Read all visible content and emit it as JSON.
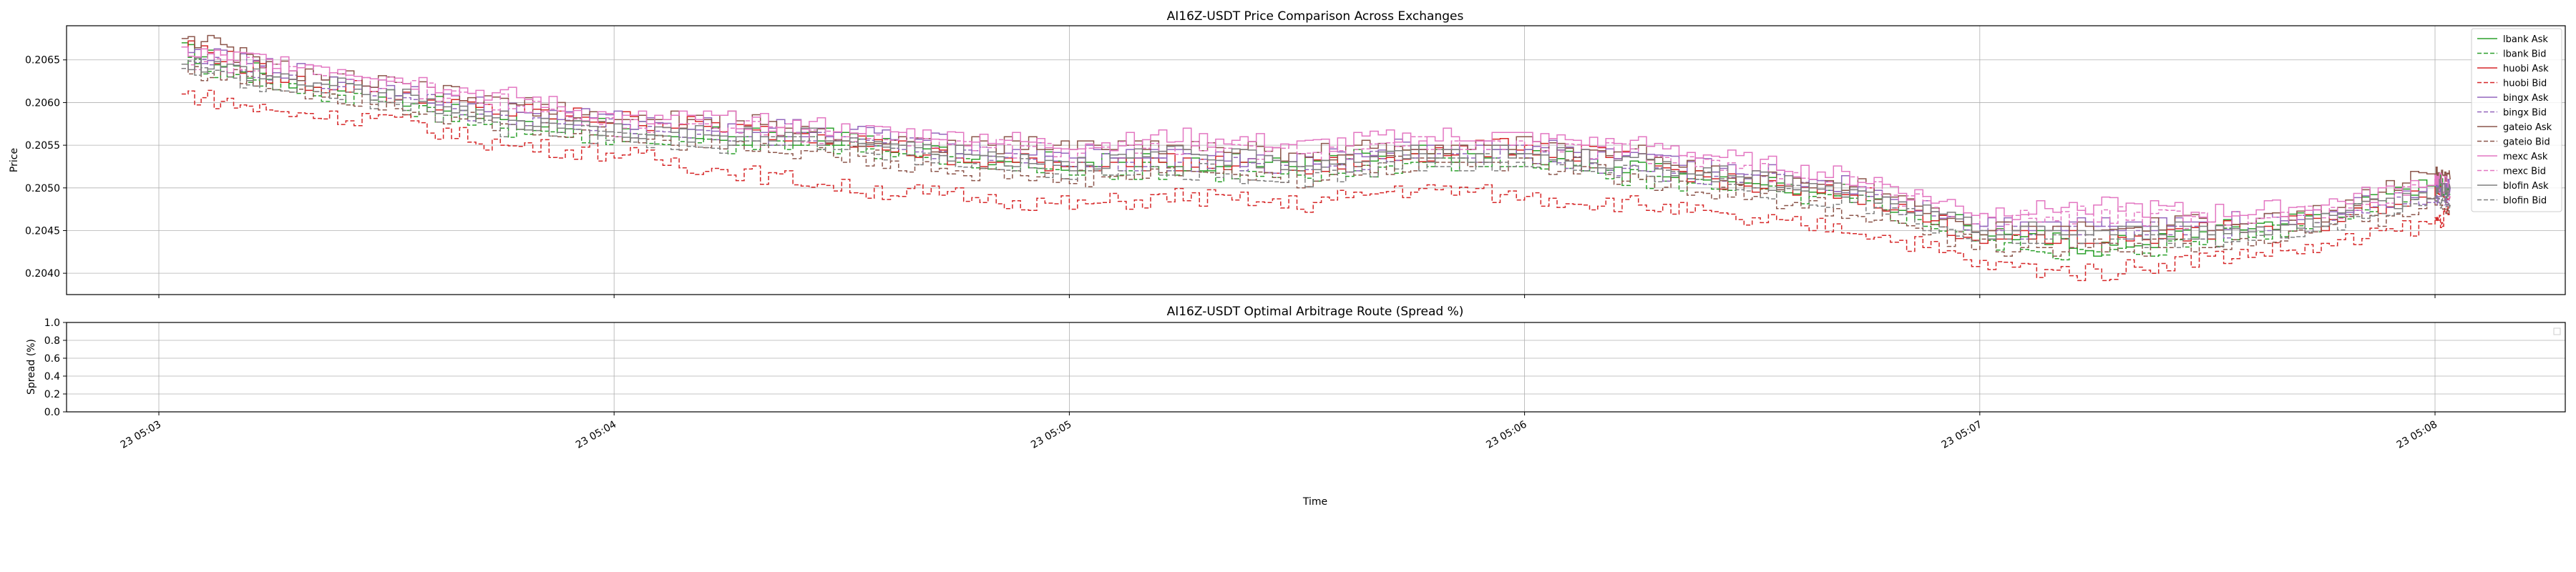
{
  "chart_data": [
    {
      "type": "line",
      "title": "AI16Z-USDT Price Comparison Across Exchanges",
      "xlabel": "",
      "ylabel": "Price",
      "xlim": [
        "2025-01-23 05:03:00",
        "2025-01-23 05:08:00"
      ],
      "x_ticks": [
        "2025-01-23 05:03:00",
        "2025-01-23 05:04:00",
        "2025-01-23 05:05:00",
        "2025-01-23 05:06:00",
        "2025-01-23 05:07:00",
        "2025-01-23 05:08:00"
      ],
      "x_tick_labels": [
        "23 05:03",
        "23 05:04",
        "23 05:05",
        "23 05:06",
        "23 05:07",
        "23 05:08"
      ],
      "ylim": [
        0.20375,
        0.2069
      ],
      "y_ticks": [
        0.204,
        0.2045,
        0.205,
        0.2055,
        0.206,
        0.2065
      ],
      "y_tick_labels": [
        "0.2040",
        "0.2045",
        "0.2050",
        "0.2055",
        "0.2060",
        "0.2065"
      ],
      "grid": true,
      "legend_position": "upper right",
      "x": [
        "05:03:03",
        "05:03:15",
        "05:03:30",
        "05:03:45",
        "05:04:00",
        "05:04:15",
        "05:04:30",
        "05:04:45",
        "05:05:00",
        "05:05:15",
        "05:05:30",
        "05:05:45",
        "05:06:00",
        "05:06:15",
        "05:06:30",
        "05:06:45",
        "05:07:00",
        "05:07:15",
        "05:07:30",
        "05:07:45",
        "05:08:00",
        "05:08:02"
      ],
      "series": [
        {
          "name": "lbank Ask",
          "color": "#2ca02c",
          "dash": "solid",
          "values": [
            0.2066,
            0.2063,
            0.2061,
            0.2058,
            0.2057,
            0.2056,
            0.2056,
            0.2054,
            0.2053,
            0.2053,
            0.2053,
            0.2054,
            0.2054,
            0.2052,
            0.2051,
            0.2049,
            0.2045,
            0.2043,
            0.2045,
            0.2047,
            0.2051,
            0.205
          ]
        },
        {
          "name": "lbank Bid",
          "color": "#2ca02c",
          "dash": "dashed",
          "values": [
            0.2065,
            0.2062,
            0.206,
            0.2057,
            0.2056,
            0.2055,
            0.2055,
            0.2053,
            0.2052,
            0.2052,
            0.2051,
            0.2053,
            0.2053,
            0.2051,
            0.205,
            0.2048,
            0.2044,
            0.2042,
            0.2044,
            0.2046,
            0.205,
            0.2049
          ]
        },
        {
          "name": "huobi Ask",
          "color": "#d62728",
          "dash": "solid",
          "values": [
            0.2067,
            0.2063,
            0.2061,
            0.2059,
            0.2058,
            0.2057,
            0.2056,
            0.2053,
            0.2053,
            0.2053,
            0.2052,
            0.2054,
            0.2055,
            0.2053,
            0.205,
            0.2049,
            0.2044,
            0.2044,
            0.2045,
            0.2046,
            0.205,
            0.2049
          ]
        },
        {
          "name": "huobi Bid",
          "color": "#d62728",
          "dash": "dashed",
          "values": [
            0.2061,
            0.2059,
            0.2058,
            0.2055,
            0.2054,
            0.2052,
            0.205,
            0.2049,
            0.2048,
            0.2049,
            0.2048,
            0.205,
            0.2049,
            0.2048,
            0.2046,
            0.2045,
            0.2041,
            0.204,
            0.2042,
            0.2043,
            0.2046,
            0.2047
          ]
        },
        {
          "name": "bingx Ask",
          "color": "#9467bd",
          "dash": "solid",
          "values": [
            0.2066,
            0.2064,
            0.2062,
            0.2059,
            0.2058,
            0.2057,
            0.2057,
            0.2055,
            0.2054,
            0.2054,
            0.2053,
            0.2055,
            0.2055,
            0.2053,
            0.2052,
            0.205,
            0.2046,
            0.2046,
            0.2046,
            0.2047,
            0.205,
            0.205
          ]
        },
        {
          "name": "bingx Bid",
          "color": "#9467bd",
          "dash": "dashed",
          "values": [
            0.2065,
            0.2063,
            0.2061,
            0.2058,
            0.2057,
            0.2056,
            0.2056,
            0.2054,
            0.2053,
            0.2053,
            0.2052,
            0.2054,
            0.2054,
            0.2052,
            0.2051,
            0.2049,
            0.2045,
            0.2045,
            0.2045,
            0.2046,
            0.2049,
            0.2049
          ]
        },
        {
          "name": "gateio Ask",
          "color": "#8c564b",
          "dash": "solid",
          "values": [
            0.2068,
            0.2064,
            0.2062,
            0.206,
            0.2058,
            0.2058,
            0.2056,
            0.2055,
            0.2055,
            0.2055,
            0.2054,
            0.2055,
            0.2055,
            0.2054,
            0.2051,
            0.205,
            0.2045,
            0.2045,
            0.2046,
            0.2047,
            0.2052,
            0.2051
          ]
        },
        {
          "name": "gateio Bid",
          "color": "#8c564b",
          "dash": "dashed",
          "values": [
            0.2064,
            0.2062,
            0.206,
            0.2057,
            0.2056,
            0.2055,
            0.2054,
            0.2052,
            0.2051,
            0.2052,
            0.2051,
            0.2053,
            0.2053,
            0.2051,
            0.2049,
            0.2047,
            0.2043,
            0.2043,
            0.2043,
            0.2045,
            0.2048,
            0.2048
          ]
        },
        {
          "name": "mexc Ask",
          "color": "#e377c2",
          "dash": "solid",
          "values": [
            0.2066,
            0.2065,
            0.2063,
            0.2061,
            0.2058,
            0.2058,
            0.2057,
            0.2056,
            0.2055,
            0.2056,
            0.2055,
            0.2056,
            0.2056,
            0.2055,
            0.2053,
            0.2051,
            0.2047,
            0.2048,
            0.2047,
            0.2048,
            0.2051,
            0.205
          ]
        },
        {
          "name": "mexc Bid",
          "color": "#e377c2",
          "dash": "dashed",
          "values": [
            0.2065,
            0.2064,
            0.2062,
            0.206,
            0.2057,
            0.2057,
            0.2056,
            0.2055,
            0.2054,
            0.2055,
            0.2054,
            0.2055,
            0.2055,
            0.2054,
            0.2052,
            0.205,
            0.2046,
            0.2047,
            0.2046,
            0.2047,
            0.205,
            0.2049
          ]
        },
        {
          "name": "blofin Ask",
          "color": "#7f7f7f",
          "dash": "solid",
          "values": [
            0.2065,
            0.2063,
            0.2061,
            0.2058,
            0.2057,
            0.2056,
            0.2056,
            0.2054,
            0.2053,
            0.2054,
            0.2053,
            0.2054,
            0.2054,
            0.2053,
            0.2051,
            0.2049,
            0.2045,
            0.2045,
            0.2045,
            0.2046,
            0.205,
            0.205
          ]
        },
        {
          "name": "blofin Bid",
          "color": "#7f7f7f",
          "dash": "dashed",
          "values": [
            0.2064,
            0.2062,
            0.206,
            0.2057,
            0.2056,
            0.2055,
            0.2055,
            0.2053,
            0.2052,
            0.2052,
            0.2051,
            0.2053,
            0.2053,
            0.2052,
            0.205,
            0.2048,
            0.2044,
            0.2044,
            0.2044,
            0.2045,
            0.2049,
            0.2048
          ]
        }
      ]
    },
    {
      "type": "line",
      "title": "AI16Z-USDT Optimal Arbitrage Route (Spread %)",
      "xlabel": "Time",
      "ylabel": "Spread (%)",
      "xlim": [
        "2025-01-23 05:03:00",
        "2025-01-23 05:08:00"
      ],
      "x_tick_labels": [
        "23 05:03",
        "23 05:04",
        "23 05:05",
        "23 05:06",
        "23 05:07",
        "23 05:08"
      ],
      "ylim": [
        0.0,
        1.0
      ],
      "y_ticks": [
        0.0,
        0.2,
        0.4,
        0.6,
        0.8,
        1.0
      ],
      "y_tick_labels": [
        "0.0",
        "0.2",
        "0.4",
        "0.6",
        "0.8",
        "1.0"
      ],
      "grid": true,
      "legend_position": "upper right",
      "series": []
    }
  ]
}
